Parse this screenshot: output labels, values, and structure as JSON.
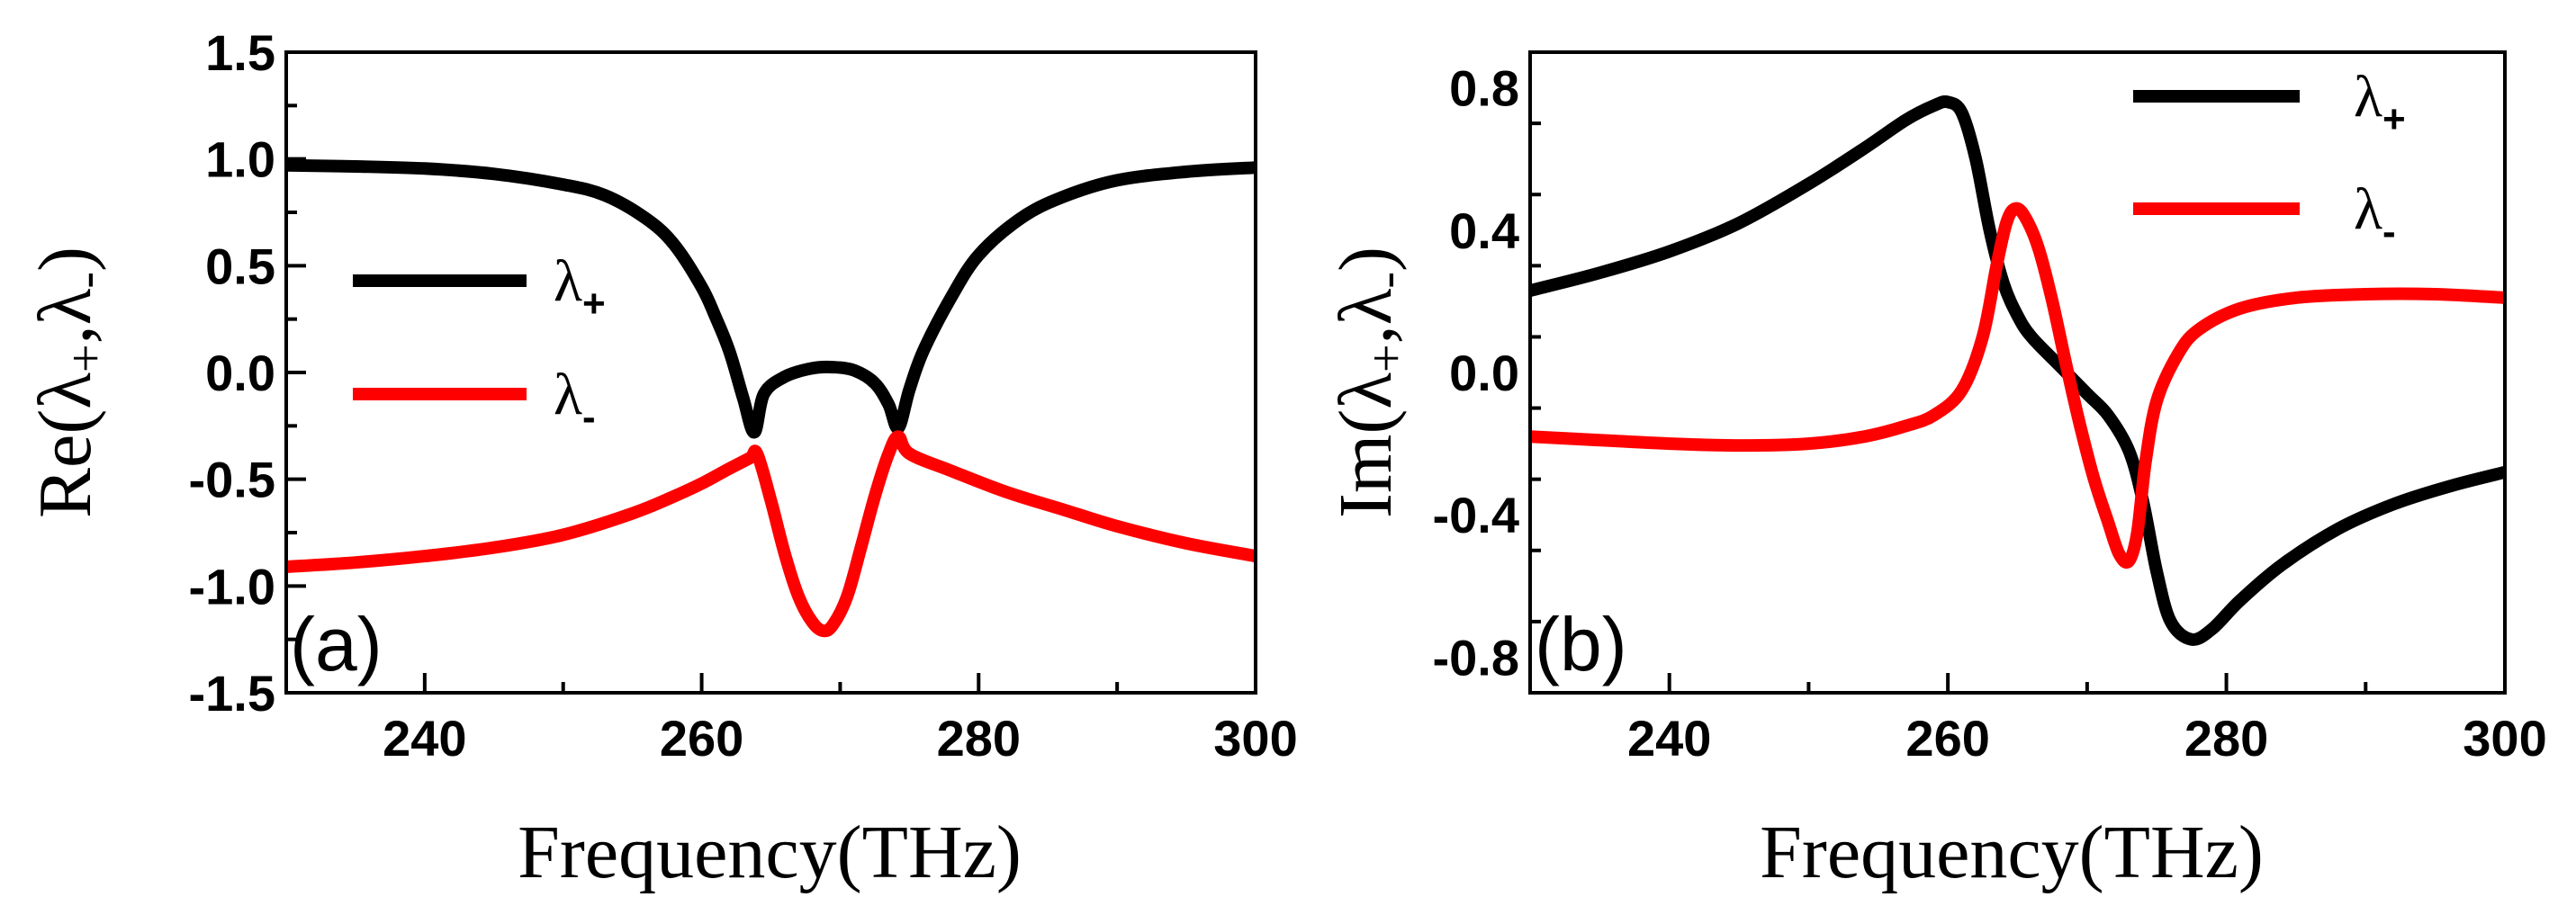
{
  "chart_data": [
    {
      "type": "line",
      "panel_label": "(a)",
      "xlabel": "Frequency(THz)",
      "ylabel_base": "Re(λ",
      "ylabel_sub1": "+",
      "ylabel_mid": ",λ",
      "ylabel_sub2": "-",
      "ylabel_end": ")",
      "xlim": [
        230,
        300
      ],
      "ylim": [
        -1.5,
        1.5
      ],
      "xticks": [
        240,
        260,
        280,
        300
      ],
      "yticks": [
        1.5,
        1.0,
        0.5,
        0.0,
        -0.5,
        -1.0,
        -1.5
      ],
      "ytick_labels": [
        "1.5",
        "1.0",
        "0.5",
        "0.0",
        "-0.5",
        "-1.0",
        "-1.5"
      ],
      "legend_position": "center-left",
      "series": [
        {
          "name": "λ+",
          "legend_main": "λ",
          "legend_sub": "+",
          "color": "#000000",
          "x": [
            230,
            235,
            240,
            245,
            250,
            253,
            256,
            258,
            260,
            261,
            262,
            263,
            263.8,
            264.5,
            266,
            268,
            269.5,
            271,
            272.5,
            273.5,
            274.2,
            275,
            276,
            278,
            280,
            283,
            286,
            290,
            295,
            300
          ],
          "y": [
            0.97,
            0.965,
            0.955,
            0.93,
            0.88,
            0.83,
            0.72,
            0.6,
            0.4,
            0.26,
            0.1,
            -0.12,
            -0.28,
            -0.1,
            -0.02,
            0.02,
            0.025,
            0.01,
            -0.05,
            -0.15,
            -0.26,
            -0.08,
            0.1,
            0.35,
            0.55,
            0.72,
            0.82,
            0.9,
            0.94,
            0.96
          ]
        },
        {
          "name": "λ-",
          "legend_main": "λ",
          "legend_sub": "-",
          "color": "#ff0000",
          "x": [
            230,
            235,
            240,
            245,
            250,
            255,
            258,
            260,
            262,
            263.5,
            264,
            265,
            266,
            267,
            268,
            268.8,
            269.5,
            270.5,
            271.5,
            272.5,
            273.5,
            274.2,
            275,
            278,
            282,
            286,
            290,
            295,
            300
          ],
          "y": [
            -0.91,
            -0.89,
            -0.86,
            -0.82,
            -0.76,
            -0.66,
            -0.58,
            -0.52,
            -0.45,
            -0.4,
            -0.38,
            -0.6,
            -0.85,
            -1.05,
            -1.17,
            -1.21,
            -1.18,
            -1.05,
            -0.82,
            -0.58,
            -0.38,
            -0.3,
            -0.38,
            -0.46,
            -0.56,
            -0.64,
            -0.72,
            -0.8,
            -0.86
          ]
        }
      ]
    },
    {
      "type": "line",
      "panel_label": "(b)",
      "xlabel": "Frequency(THz)",
      "ylabel_base": "Im(λ",
      "ylabel_sub1": "+",
      "ylabel_mid": ",λ",
      "ylabel_sub2": "-",
      "ylabel_end": ")",
      "xlim": [
        230,
        300
      ],
      "ylim": [
        -0.9,
        0.9
      ],
      "xticks": [
        240,
        260,
        280,
        300
      ],
      "yticks": [
        0.8,
        0.4,
        0.0,
        -0.4,
        -0.8
      ],
      "ytick_labels": [
        "0.8",
        "0.4",
        "0.0",
        "-0.4",
        "-0.8"
      ],
      "legend_position": "top-right",
      "series": [
        {
          "name": "λ+",
          "legend_main": "λ",
          "legend_sub": "+",
          "color": "#000000",
          "x": [
            230,
            235,
            240,
            245,
            250,
            254,
            257,
            259,
            260,
            261,
            262,
            263,
            264,
            265,
            266,
            268,
            270,
            271.5,
            273,
            274,
            275,
            276,
            277.5,
            279,
            281,
            284,
            288,
            292,
            296,
            300
          ],
          "y": [
            0.23,
            0.28,
            0.34,
            0.42,
            0.53,
            0.63,
            0.71,
            0.75,
            0.76,
            0.73,
            0.6,
            0.4,
            0.25,
            0.16,
            0.1,
            0.02,
            -0.06,
            -0.12,
            -0.22,
            -0.36,
            -0.56,
            -0.7,
            -0.75,
            -0.72,
            -0.64,
            -0.54,
            -0.44,
            -0.37,
            -0.32,
            -0.28
          ]
        },
        {
          "name": "λ-",
          "legend_main": "λ",
          "legend_sub": "-",
          "color": "#ff0000",
          "x": [
            230,
            235,
            240,
            245,
            250,
            254,
            257,
            259,
            261,
            262.5,
            263.5,
            264.2,
            264.8,
            265.5,
            266.5,
            267.5,
            268.5,
            269.5,
            270.5,
            271.5,
            272.3,
            273,
            273.6,
            274.2,
            275,
            276.5,
            278,
            281,
            285,
            290,
            295,
            300
          ],
          "y": [
            -0.18,
            -0.19,
            -0.2,
            -0.205,
            -0.2,
            -0.18,
            -0.15,
            -0.12,
            -0.05,
            0.1,
            0.3,
            0.42,
            0.46,
            0.44,
            0.35,
            0.2,
            0.02,
            -0.15,
            -0.3,
            -0.42,
            -0.51,
            -0.53,
            -0.45,
            -0.25,
            -0.08,
            0.05,
            0.12,
            0.18,
            0.21,
            0.22,
            0.22,
            0.21
          ]
        }
      ]
    }
  ]
}
